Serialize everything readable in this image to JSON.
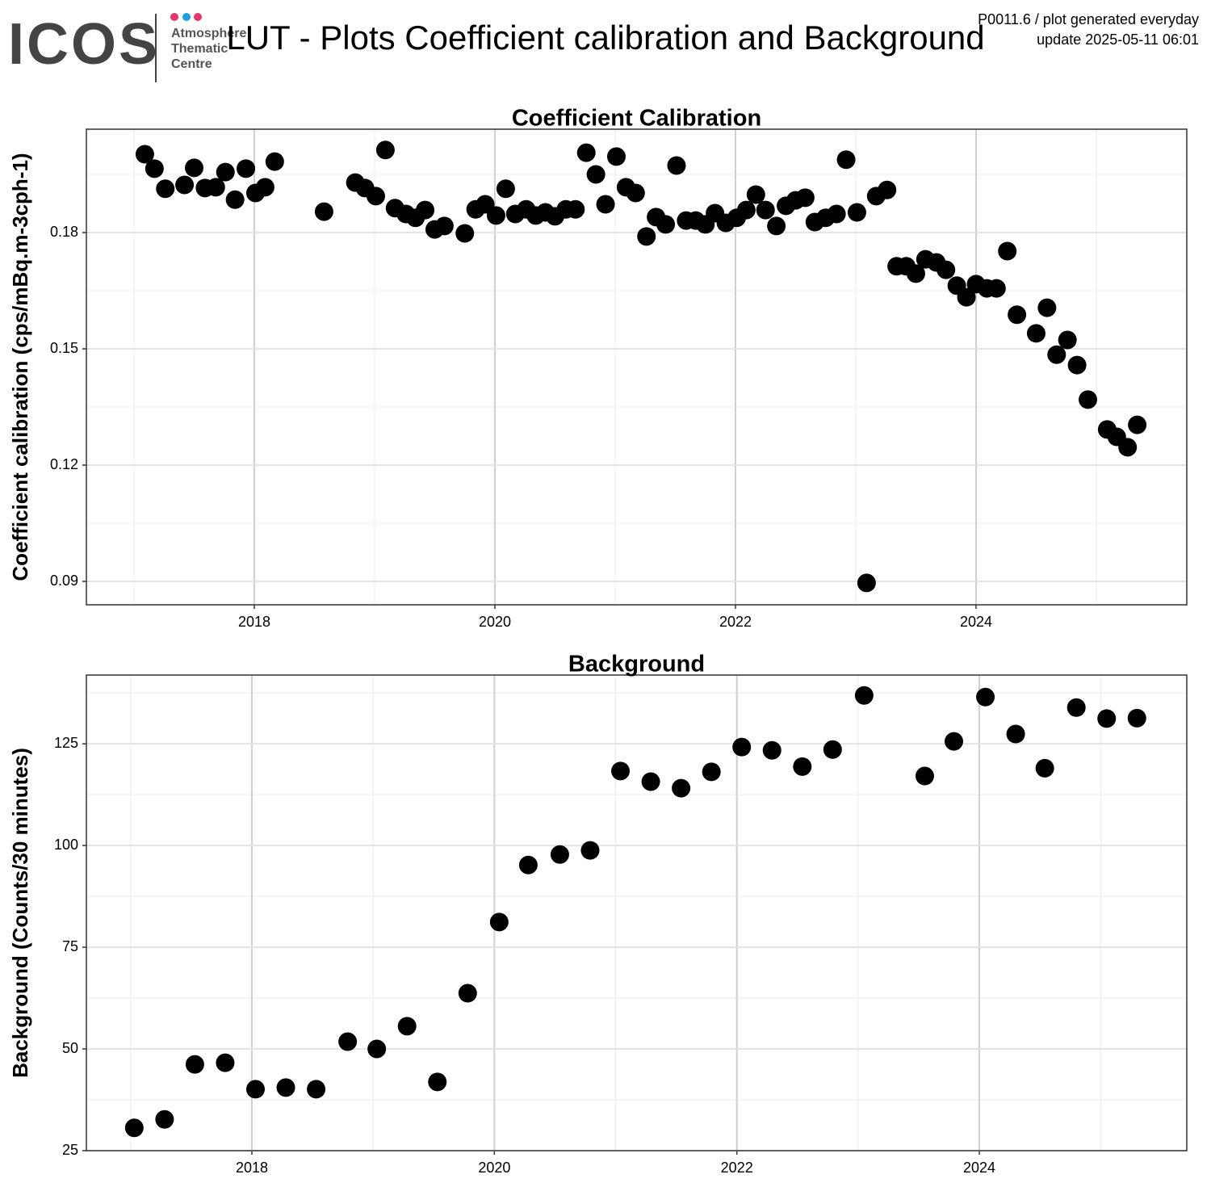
{
  "header": {
    "logo": "ICOS",
    "logo_lines": [
      "Atmosphere",
      "Thematic",
      "Centre"
    ],
    "title": "LUT - Plots Coefficient calibration and Background",
    "info": [
      "P0011.6 / plot generated everyday",
      "update  2025-05-11 06:01"
    ]
  },
  "chart_data": [
    {
      "type": "scatter",
      "title": "Coefficient Calibration",
      "y_label": "Coefficient calibration (cps/mBq.m-3cph-1)",
      "color": "#000000",
      "grid": true,
      "xlim": [
        2016.604,
        2025.752
      ],
      "xticks": [
        2018,
        2020,
        2022,
        2024
      ],
      "xminor": [
        2017,
        2019,
        2021,
        2023,
        2025
      ],
      "ylim": [
        0.08396,
        0.20667
      ],
      "yticks": [
        0.09,
        0.12,
        0.15,
        0.18
      ],
      "yminor": [
        0.105,
        0.135,
        0.165,
        0.195
      ],
      "x": [
        2017.09,
        2017.17,
        2017.26,
        2017.42,
        2017.5,
        2017.59,
        2017.68,
        2017.76,
        2017.84,
        2017.93,
        2018.01,
        2018.09,
        2018.17,
        2018.58,
        2018.84,
        2018.92,
        2019.01,
        2019.09,
        2019.17,
        2019.26,
        2019.34,
        2019.42,
        2019.5,
        2019.58,
        2019.75,
        2019.84,
        2019.92,
        2020.01,
        2020.09,
        2020.17,
        2020.26,
        2020.34,
        2020.42,
        2020.5,
        2020.59,
        2020.67,
        2020.76,
        2020.84,
        2020.92,
        2021.01,
        2021.09,
        2021.17,
        2021.26,
        2021.34,
        2021.42,
        2021.51,
        2021.59,
        2021.67,
        2021.75,
        2021.83,
        2021.92,
        2022.01,
        2022.09,
        2022.17,
        2022.25,
        2022.34,
        2022.42,
        2022.5,
        2022.58,
        2022.66,
        2022.75,
        2022.84,
        2022.92,
        2023.01,
        2023.09,
        2023.17,
        2023.26,
        2023.34,
        2023.42,
        2023.5,
        2023.58,
        2023.67,
        2023.75,
        2023.84,
        2023.92,
        2024.0,
        2024.09,
        2024.17,
        2024.26,
        2024.34,
        2024.5,
        2024.59,
        2024.67,
        2024.76,
        2024.84,
        2024.93,
        2025.09,
        2025.17,
        2025.26,
        2025.34
      ],
      "values": [
        0.2002,
        0.1965,
        0.1913,
        0.1923,
        0.1967,
        0.1915,
        0.1917,
        0.1956,
        0.1885,
        0.1965,
        0.1902,
        0.1917,
        0.1983,
        0.1854,
        0.1929,
        0.1915,
        0.1894,
        0.2013,
        0.1863,
        0.1848,
        0.1838,
        0.1858,
        0.1808,
        0.1817,
        0.1798,
        0.186,
        0.1873,
        0.1844,
        0.1913,
        0.1848,
        0.186,
        0.1844,
        0.1852,
        0.1842,
        0.186,
        0.186,
        0.2006,
        0.195,
        0.1873,
        0.1996,
        0.1917,
        0.1902,
        0.179,
        0.184,
        0.1821,
        0.1973,
        0.1831,
        0.1831,
        0.1821,
        0.185,
        0.1825,
        0.1838,
        0.1858,
        0.1898,
        0.1858,
        0.1817,
        0.1869,
        0.1883,
        0.189,
        0.1827,
        0.1838,
        0.1848,
        0.1988,
        0.1852,
        0.0896,
        0.1894,
        0.191,
        0.1713,
        0.1713,
        0.1694,
        0.1731,
        0.1723,
        0.1704,
        0.1663,
        0.1633,
        0.1667,
        0.1656,
        0.1656,
        0.1752,
        0.1588,
        0.154,
        0.1606,
        0.1485,
        0.1523,
        0.1458,
        0.1369,
        0.1292,
        0.1273,
        0.1246,
        0.1304
      ]
    },
    {
      "type": "scatter",
      "title": "Background",
      "y_label": "Background (Counts/30 minutes)",
      "color": "#000000",
      "grid": true,
      "xlim": [
        2016.635,
        2025.711
      ],
      "xticks": [
        2018,
        2020,
        2022,
        2024
      ],
      "xminor": [
        2017,
        2019,
        2021,
        2023,
        2025
      ],
      "ylim": [
        25,
        141.9
      ],
      "yticks": [
        25,
        50,
        75,
        100,
        125
      ],
      "yminor": [
        37.5,
        62.5,
        87.5,
        112.5,
        137.5
      ],
      "x": [
        2017.03,
        2017.28,
        2017.53,
        2017.78,
        2018.03,
        2018.28,
        2018.53,
        2018.79,
        2019.03,
        2019.28,
        2019.53,
        2019.78,
        2020.04,
        2020.28,
        2020.54,
        2020.79,
        2021.04,
        2021.29,
        2021.54,
        2021.79,
        2022.04,
        2022.29,
        2022.54,
        2022.79,
        2023.05,
        2023.55,
        2023.79,
        2024.05,
        2024.3,
        2024.54,
        2024.8,
        2025.05,
        2025.3
      ],
      "values": [
        30.6,
        32.7,
        46.2,
        46.6,
        40.1,
        40.5,
        40.1,
        51.8,
        50.0,
        55.6,
        41.9,
        63.7,
        81.2,
        95.2,
        97.8,
        98.8,
        118.3,
        115.7,
        114.1,
        118.1,
        124.2,
        123.4,
        119.4,
        123.6,
        136.9,
        117.1,
        125.6,
        136.5,
        127.4,
        119.0,
        133.9,
        131.2,
        131.3
      ]
    }
  ]
}
